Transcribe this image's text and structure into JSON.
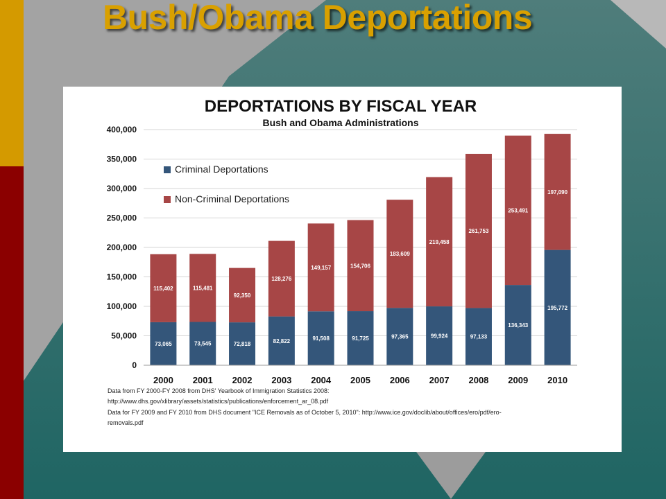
{
  "slide": {
    "title": "Bush/Obama Deportations",
    "colors": {
      "title": "#d9a000",
      "gold_bar": "#d49a00",
      "red_bar": "#8b0000",
      "teal": "#2f6f6c"
    }
  },
  "chart_data": {
    "type": "bar",
    "stacked": true,
    "title": "DEPORTATIONS BY FISCAL YEAR",
    "subtitle": "Bush and Obama Administrations",
    "xlabel": "",
    "ylabel": "",
    "ylim": [
      0,
      400000
    ],
    "yticks": [
      0,
      50000,
      100000,
      150000,
      200000,
      250000,
      300000,
      350000,
      400000
    ],
    "ytick_labels": [
      "0",
      "50,000",
      "100,000",
      "150,000",
      "200,000",
      "250,000",
      "300,000",
      "350,000",
      "400,000"
    ],
    "grid": true,
    "legend_position": "top-left",
    "categories": [
      "2000",
      "2001",
      "2002",
      "2003",
      "2004",
      "2005",
      "2006",
      "2007",
      "2008",
      "2009",
      "2010"
    ],
    "series": [
      {
        "name": "Criminal Deportations",
        "color": "#34567a",
        "values": [
          73065,
          73545,
          72818,
          82822,
          91508,
          91725,
          97365,
          99924,
          97133,
          136343,
          195772
        ],
        "labels": [
          "73,065",
          "73,545",
          "72,818",
          "82,822",
          "91,508",
          "91,725",
          "97,365",
          "99,924",
          "97,133",
          "136,343",
          "195,772"
        ]
      },
      {
        "name": "Non-Criminal Deportations",
        "color": "#a74646",
        "values": [
          115402,
          115481,
          92350,
          128276,
          149157,
          154706,
          183609,
          219458,
          261753,
          253491,
          197090
        ],
        "labels": [
          "115,402",
          "115,481",
          "92,350",
          "128,276",
          "149,157",
          "154,706",
          "183,609",
          "219,458",
          "261,753",
          "253,491",
          "197,090"
        ]
      }
    ],
    "source_notes": [
      "Data from FY 2000-FY 2008 from DHS' Yearbook of Immigration Statistics 2008:",
      "http://www.dhs.gov/xlibrary/assets/statistics/publications/enforcement_ar_08.pdf",
      "Data for FY 2009 and FY 2010 from DHS document \"ICE Removals as of October 5, 2010\": http://www.ice.gov/doclib/about/offices/ero/pdf/ero-",
      "removals.pdf"
    ]
  }
}
